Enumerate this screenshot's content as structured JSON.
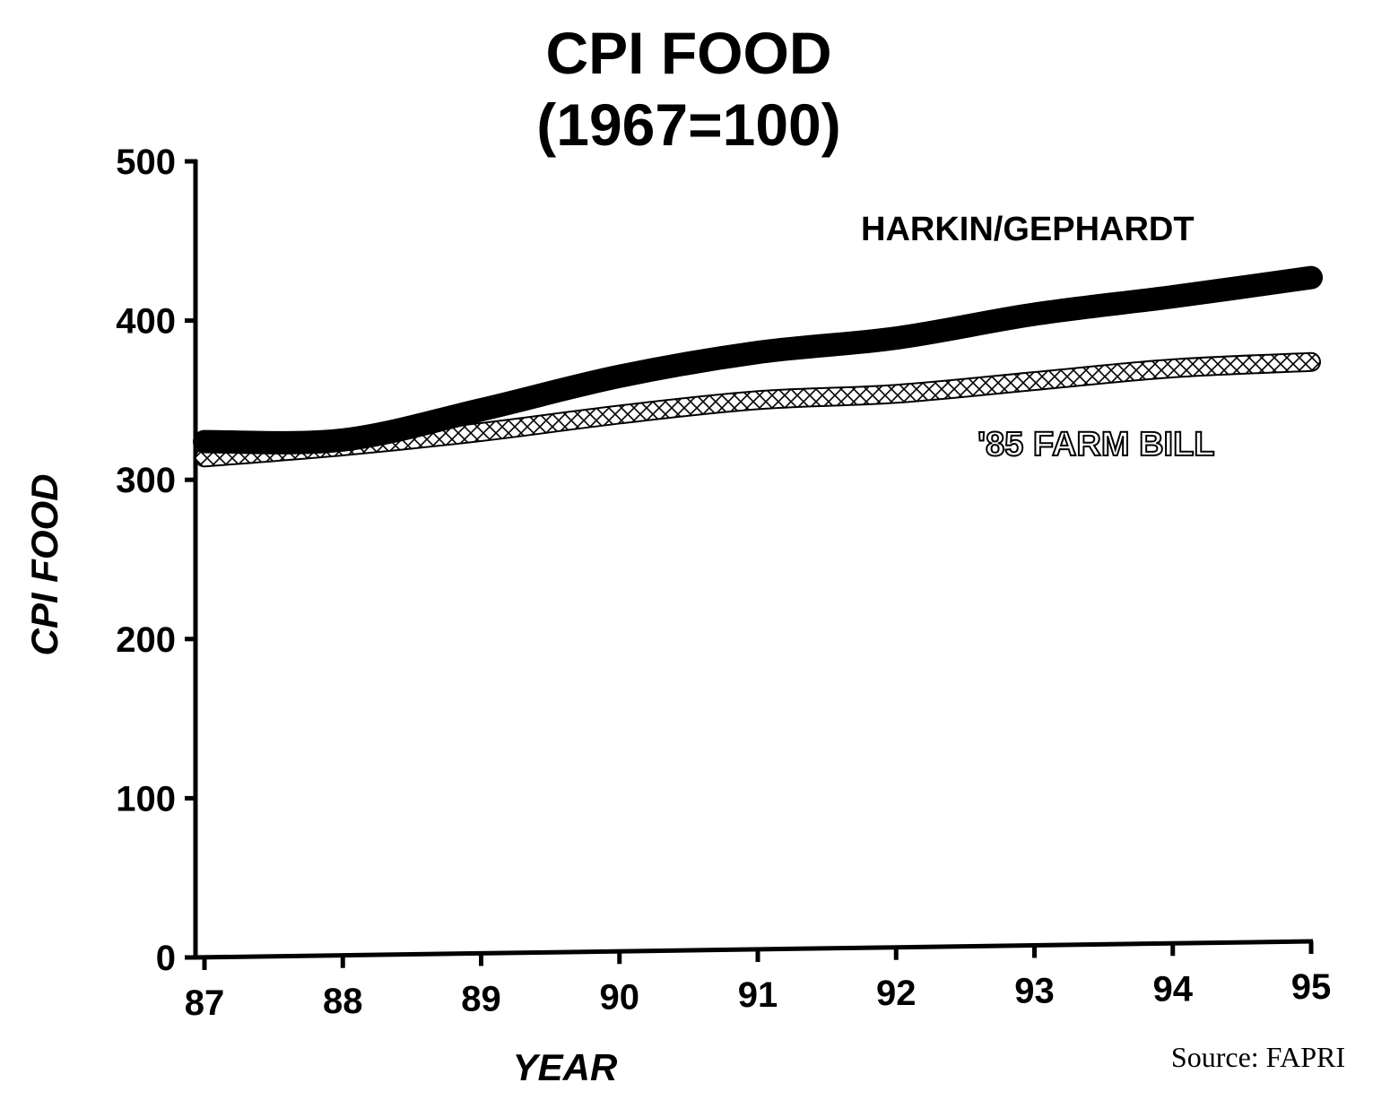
{
  "chart_data": {
    "type": "line",
    "title": "CPI FOOD",
    "subtitle": "(1967=100)",
    "xlabel": "YEAR",
    "ylabel": "CPI FOOD",
    "x": [
      "87",
      "88",
      "89",
      "90",
      "91",
      "92",
      "93",
      "94",
      "95"
    ],
    "ylim": [
      0,
      500
    ],
    "yticks": [
      "0",
      "100",
      "200",
      "300",
      "400",
      "500"
    ],
    "grid": false,
    "series": [
      {
        "name": "HARKIN/GEPHARDT",
        "style": "solid-black",
        "values": [
          324,
          325,
          344,
          365,
          380,
          389,
          404,
          415,
          427
        ]
      },
      {
        "name": "'85 FARM BILL",
        "style": "crosshatch",
        "values": [
          314,
          321,
          330,
          341,
          350,
          354,
          362,
          370,
          374
        ]
      }
    ],
    "source": "Source: FAPRI"
  }
}
